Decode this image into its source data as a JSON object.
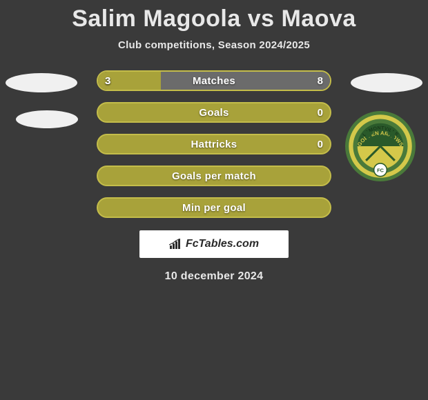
{
  "title": "Salim Magoola vs Maova",
  "subtitle": "Club competitions, Season 2024/2025",
  "date": "10 december 2024",
  "watermark": "FcTables.com",
  "colors": {
    "background": "#3a3a3a",
    "left_fill": "#a8a23a",
    "right_fill": "#6b6b6b",
    "border_left": "#c4bd4a",
    "border_neutral": "#c4bd4a",
    "text": "#ffffff"
  },
  "club_badge": {
    "outer": "#4a7a3a",
    "ring": "#d4c84a",
    "inner_top": "#2a5a2a",
    "inner_bottom": "#d4c84a",
    "text_top": "LAMONTVILLE",
    "text_mid": "GOLDEN ARROWS",
    "text_bottom": "ABAFANA BES'THENDE"
  },
  "rows": [
    {
      "label": "Matches",
      "left": "3",
      "right": "8",
      "left_pct": 27,
      "right_pct": 73,
      "show_vals": true
    },
    {
      "label": "Goals",
      "left": "",
      "right": "0",
      "left_pct": 0,
      "right_pct": 0,
      "show_vals": true,
      "right_only": true
    },
    {
      "label": "Hattricks",
      "left": "",
      "right": "0",
      "left_pct": 0,
      "right_pct": 0,
      "show_vals": true,
      "right_only": true
    },
    {
      "label": "Goals per match",
      "left": "",
      "right": "",
      "left_pct": 0,
      "right_pct": 0,
      "show_vals": false
    },
    {
      "label": "Min per goal",
      "left": "",
      "right": "",
      "left_pct": 0,
      "right_pct": 0,
      "show_vals": false
    }
  ]
}
